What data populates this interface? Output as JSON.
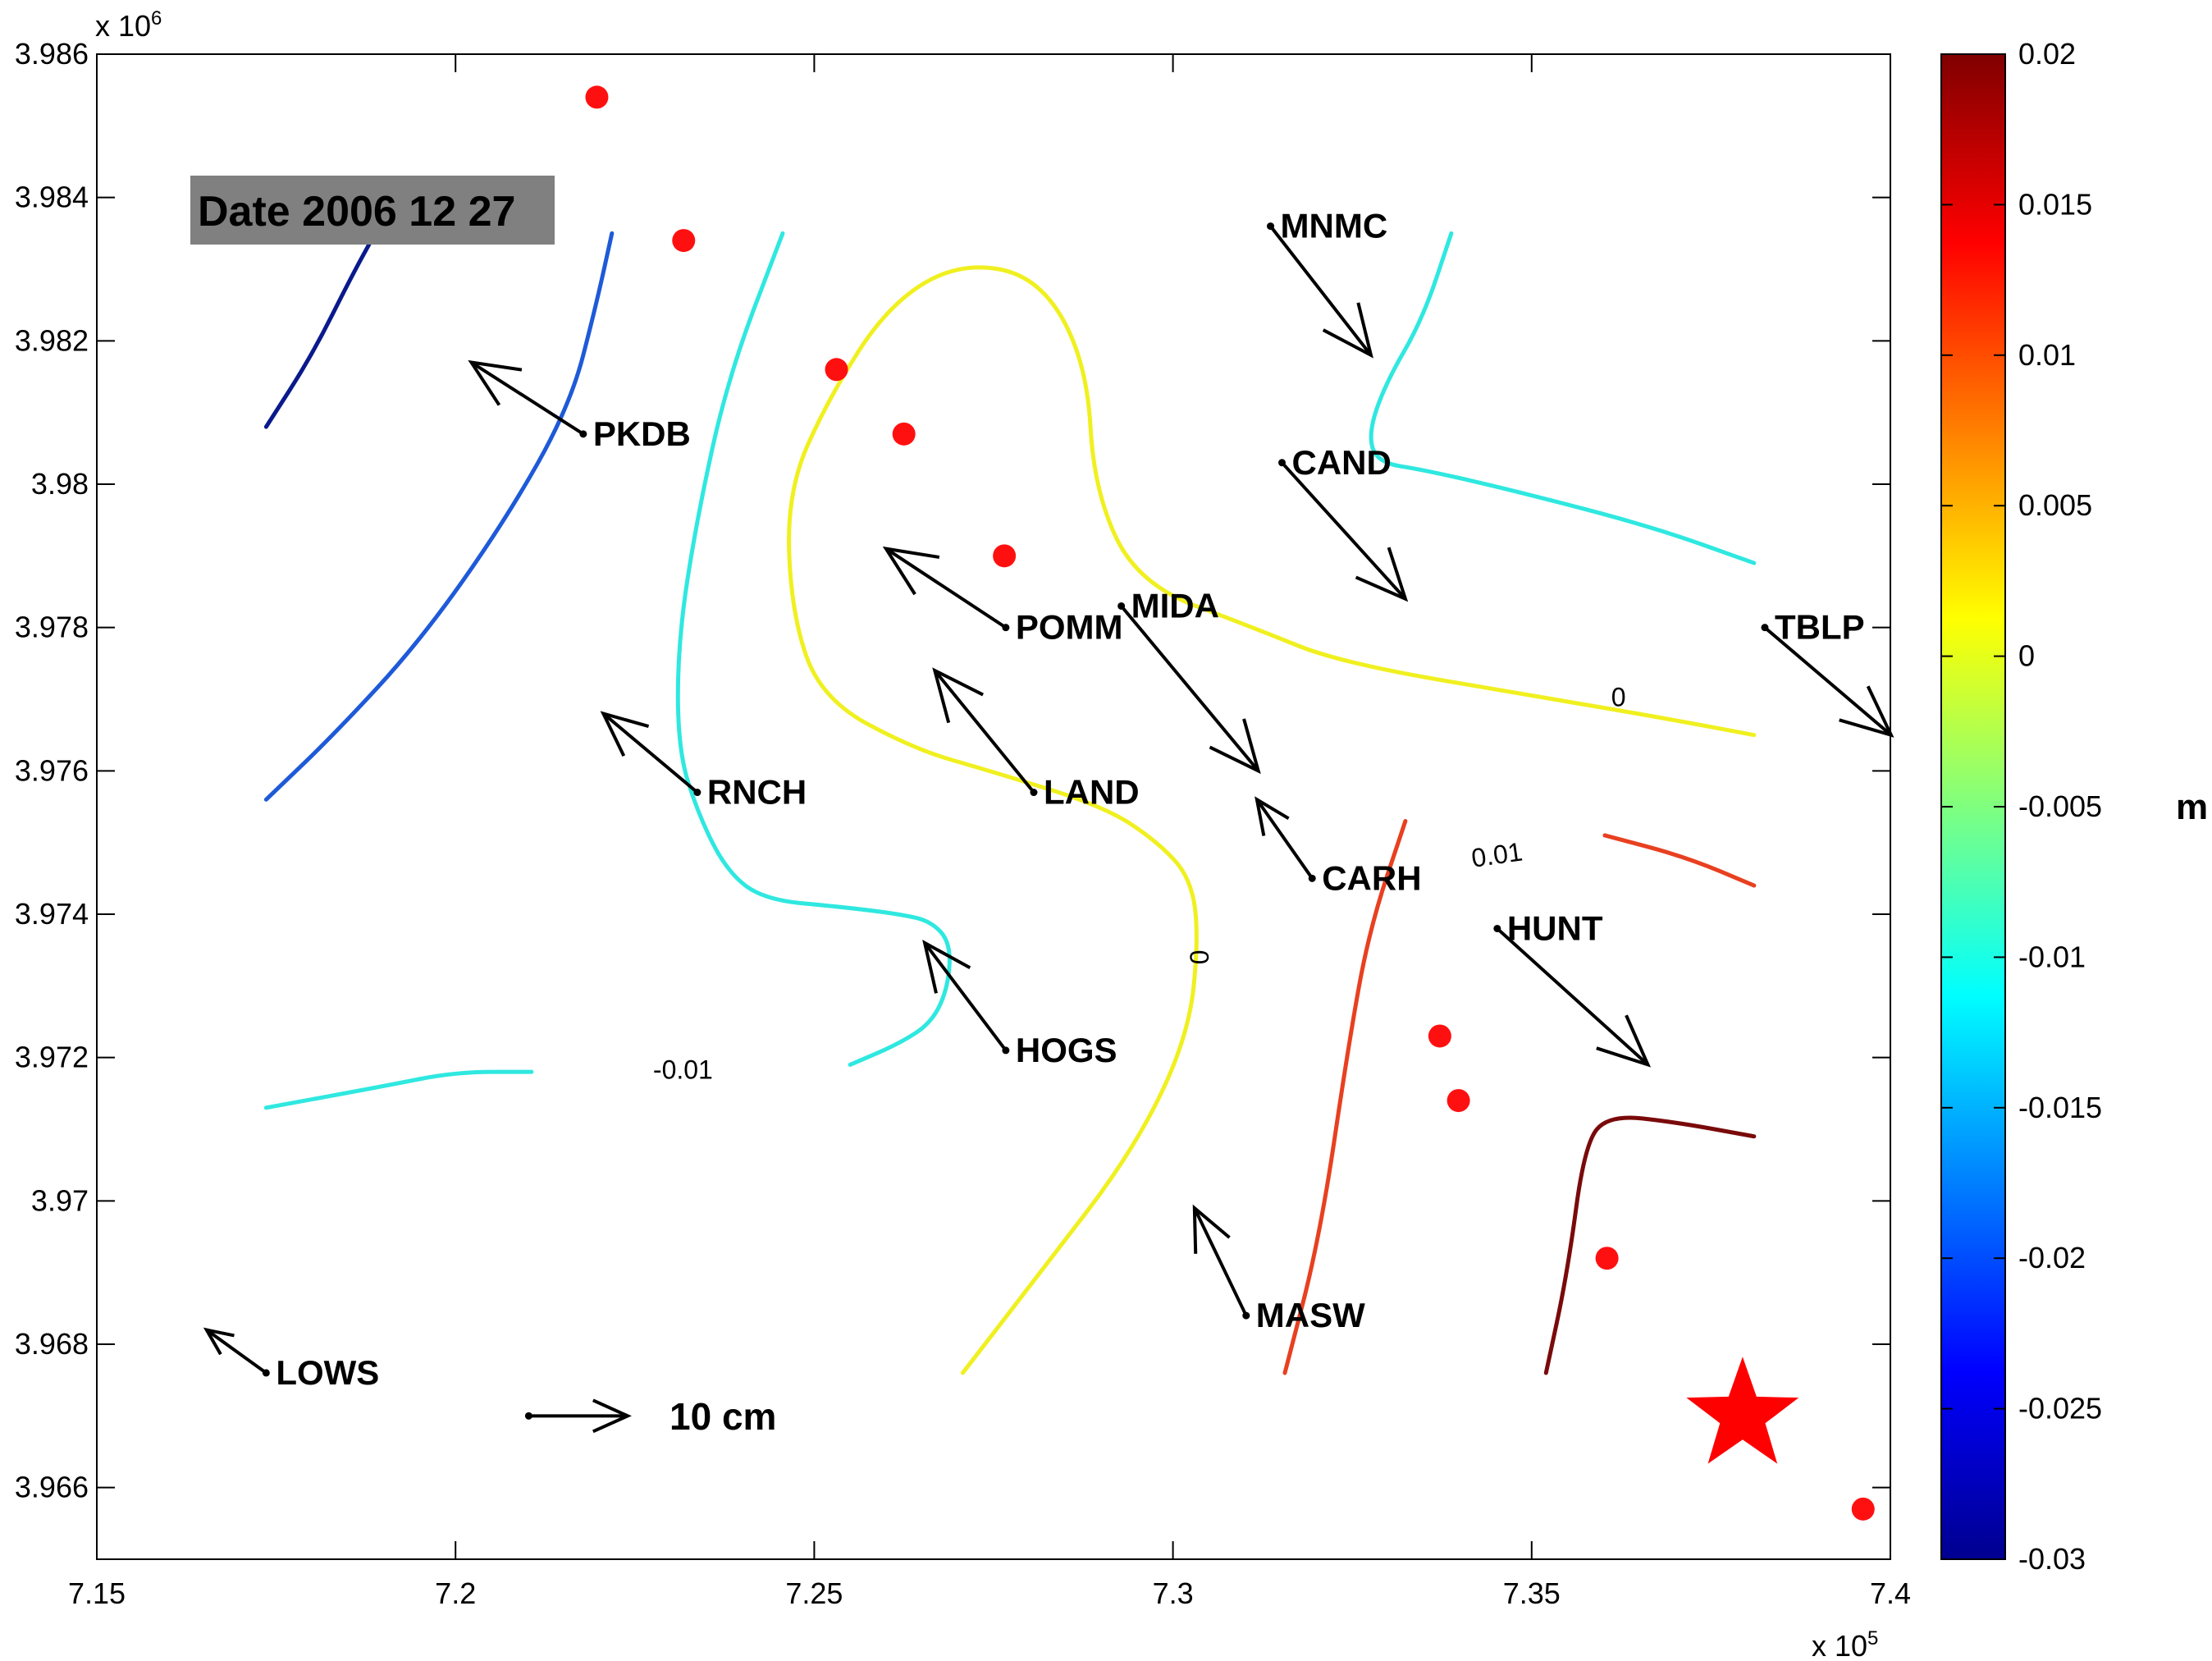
{
  "chart_data": {
    "type": "contour",
    "date_label": "Date 2006 12 27",
    "x_axis": {
      "ticks": [
        "7.15",
        "7.2",
        "7.25",
        "7.3",
        "7.35",
        "7.4"
      ],
      "tick_values": [
        7.15,
        7.2,
        7.25,
        7.3,
        7.35,
        7.4
      ],
      "exponent": "x 10",
      "exponent_power": "5",
      "xlim": [
        7.15,
        7.4
      ]
    },
    "y_axis": {
      "ticks": [
        "3.966",
        "3.968",
        "3.97",
        "3.972",
        "3.974",
        "3.976",
        "3.978",
        "3.98",
        "3.982",
        "3.984",
        "3.986"
      ],
      "tick_values": [
        3.966,
        3.968,
        3.97,
        3.972,
        3.974,
        3.976,
        3.978,
        3.98,
        3.982,
        3.984,
        3.986
      ],
      "exponent": "x 10",
      "exponent_power": "6",
      "ylim": [
        3.965,
        3.986
      ]
    },
    "colorbar": {
      "unit": "m",
      "ticks": [
        "0.02",
        "0.015",
        "0.01",
        "0.005",
        "0",
        "-0.005",
        "-0.01",
        "-0.015",
        "-0.02",
        "-0.025",
        "-0.03"
      ],
      "tick_values": [
        0.02,
        0.015,
        0.01,
        0.005,
        0,
        -0.005,
        -0.01,
        -0.015,
        -0.02,
        -0.025,
        -0.03
      ],
      "range": [
        -0.03,
        0.02
      ]
    },
    "contours": [
      {
        "level": -0.025,
        "color": "#0a1a8c",
        "points": [
          [
            7.1736,
            3.9808
          ],
          [
            7.18,
            3.9818
          ],
          [
            7.1855,
            3.9829
          ],
          [
            7.1888,
            3.9835
          ]
        ]
      },
      {
        "level": -0.02,
        "color": "#1e5ad8",
        "points": [
          [
            7.1736,
            3.9756
          ],
          [
            7.183,
            3.9765
          ],
          [
            7.195,
            3.9778
          ],
          [
            7.207,
            3.9795
          ],
          [
            7.216,
            3.9811
          ],
          [
            7.2196,
            3.9825
          ],
          [
            7.2218,
            3.9835
          ]
        ]
      },
      {
        "level": -0.01,
        "color": "#2fe8e0",
        "points": [
          [
            7.2456,
            3.9835
          ],
          [
            7.238,
            3.9815
          ],
          [
            7.2336,
            3.9795
          ],
          [
            7.231,
            3.9778
          ],
          [
            7.231,
            3.9763
          ],
          [
            7.2338,
            3.9754
          ],
          [
            7.2378,
            3.9746
          ],
          [
            7.243,
            3.9742
          ],
          [
            7.254,
            3.9741
          ],
          [
            7.262,
            3.974
          ],
          [
            7.2663,
            3.9739
          ],
          [
            7.269,
            3.9736
          ],
          [
            7.2687,
            3.973
          ],
          [
            7.2665,
            3.9725
          ],
          [
            7.262,
            3.9722
          ],
          [
            7.255,
            3.9719
          ]
        ]
      },
      {
        "level": -0.01,
        "color": "#2fe8e0",
        "points": [
          [
            7.1736,
            3.9713
          ],
          [
            7.19,
            3.9716
          ],
          [
            7.2,
            3.9718
          ],
          [
            7.2106,
            3.9718
          ]
        ]
      },
      {
        "level": -0.01,
        "color": "#2fe8e0",
        "points": [
          [
            7.3388,
            3.9835
          ],
          [
            7.3348,
            3.9823
          ],
          [
            7.3296,
            3.9814
          ],
          [
            7.3272,
            3.9807
          ],
          [
            7.3285,
            3.9803
          ],
          [
            7.335,
            3.9802
          ],
          [
            7.348,
            3.9799
          ],
          [
            7.367,
            3.9794
          ],
          [
            7.381,
            3.9789
          ]
        ]
      },
      {
        "level": 0,
        "color": "#f0f020",
        "points": [
          [
            7.2707,
            3.9676
          ],
          [
            7.2815,
            3.969
          ],
          [
            7.2945,
            3.9707
          ],
          [
            7.3022,
            3.9723
          ],
          [
            7.3036,
            3.9737
          ],
          [
            7.3025,
            3.9745
          ],
          [
            7.298,
            3.975
          ],
          [
            7.2905,
            3.9755
          ],
          [
            7.2745,
            3.976
          ],
          [
            7.264,
            3.9763
          ],
          [
            7.251,
            3.977
          ],
          [
            7.2468,
            3.9782
          ],
          [
            7.2462,
            3.9799
          ],
          [
            7.252,
            3.9812
          ],
          [
            7.2603,
            3.9825
          ],
          [
            7.2702,
            3.9831
          ],
          [
            7.2813,
            3.9829
          ],
          [
            7.288,
            3.9817
          ],
          [
            7.289,
            3.9799
          ],
          [
            7.2952,
            3.9786
          ],
          [
            7.3112,
            3.978
          ],
          [
            7.3235,
            3.9775
          ],
          [
            7.3532,
            3.977
          ],
          [
            7.3704,
            3.9767
          ],
          [
            7.381,
            3.9765
          ]
        ]
      },
      {
        "level": 0.01,
        "color": "#e84020",
        "points": [
          [
            7.3156,
            3.9676
          ],
          [
            7.3205,
            3.9695
          ],
          [
            7.3245,
            3.9722
          ],
          [
            7.3274,
            3.9738
          ],
          [
            7.3324,
            3.9753
          ]
        ]
      },
      {
        "level": 0.01,
        "color": "#e84020",
        "points": [
          [
            7.3602,
            3.9751
          ],
          [
            7.3715,
            3.9748
          ],
          [
            7.381,
            3.9744
          ]
        ]
      },
      {
        "level": 0.02,
        "color": "#7a0a0a",
        "points": [
          [
            7.352,
            3.9676
          ],
          [
            7.355,
            3.969
          ],
          [
            7.3574,
            3.9708
          ],
          [
            7.3608,
            3.9712
          ],
          [
            7.37,
            3.9711
          ],
          [
            7.381,
            3.9709
          ]
        ]
      }
    ],
    "contour_labels": [
      {
        "text": "0",
        "x": 7.3621,
        "y": 3.977,
        "rotate": 0
      },
      {
        "text": "0.01",
        "x": 7.3452,
        "y": 3.9748,
        "rotate": -8
      },
      {
        "text": "0",
        "x": 7.304,
        "y": 3.9734,
        "rotate": -90
      },
      {
        "text": "-0.01",
        "x": 7.2317,
        "y": 3.9718,
        "rotate": 0
      }
    ],
    "stations": [
      {
        "name": "PKDB",
        "x": 7.2178,
        "y": 3.9807,
        "dx": -0.0156,
        "dy": 0.001
      },
      {
        "name": "POMM",
        "x": 7.2767,
        "y": 3.978,
        "dx": -0.0167,
        "dy": 0.0011
      },
      {
        "name": "MIDA",
        "x": 7.2928,
        "y": 3.9783,
        "dx": 0.0191,
        "dy": -0.0023
      },
      {
        "name": "RNCH",
        "x": 7.2337,
        "y": 3.9757,
        "dx": -0.0131,
        "dy": 0.0011
      },
      {
        "name": "LAND",
        "x": 7.2806,
        "y": 3.9757,
        "dx": -0.0138,
        "dy": 0.0017
      },
      {
        "name": "CARH",
        "x": 7.3194,
        "y": 3.9745,
        "dx": -0.0077,
        "dy": 0.0011
      },
      {
        "name": "HOGS",
        "x": 7.2767,
        "y": 3.9721,
        "dx": -0.0113,
        "dy": 0.0015
      },
      {
        "name": "MNMC",
        "x": 7.3136,
        "y": 3.9836,
        "dx": 0.014,
        "dy": -0.0018
      },
      {
        "name": "CAND",
        "x": 7.3152,
        "y": 3.9803,
        "dx": 0.0172,
        "dy": -0.0019
      },
      {
        "name": "TBLP",
        "x": 7.3825,
        "y": 3.978,
        "dx": 0.0176,
        "dy": -0.0015
      },
      {
        "name": "HUNT",
        "x": 7.3452,
        "y": 3.9738,
        "dx": 0.021,
        "dy": -0.0019
      },
      {
        "name": "MASW",
        "x": 7.3102,
        "y": 3.9684,
        "dx": -0.0072,
        "dy": 0.0015
      },
      {
        "name": "LOWS",
        "x": 7.1736,
        "y": 3.9676,
        "dx": -0.0083,
        "dy": 0.0006
      }
    ],
    "scale_arrow": {
      "label": "10 cm",
      "x": 7.2102,
      "y": 3.967,
      "dx": 0.0138,
      "dy": 0
    },
    "red_points": [
      [
        7.2197,
        3.9854
      ],
      [
        7.2318,
        3.9834
      ],
      [
        7.2531,
        3.9816
      ],
      [
        7.2625,
        3.9807
      ],
      [
        7.2765,
        3.979
      ],
      [
        7.3372,
        3.9723
      ],
      [
        7.3398,
        3.9714
      ],
      [
        7.3605,
        3.9692
      ],
      [
        7.3962,
        3.9657
      ]
    ],
    "star": {
      "x": 7.3794,
      "y": 3.967,
      "color": "#ff0000"
    },
    "colors": {
      "points": "#ff1010",
      "arrows": "#000000",
      "date_box": "#808080"
    }
  }
}
